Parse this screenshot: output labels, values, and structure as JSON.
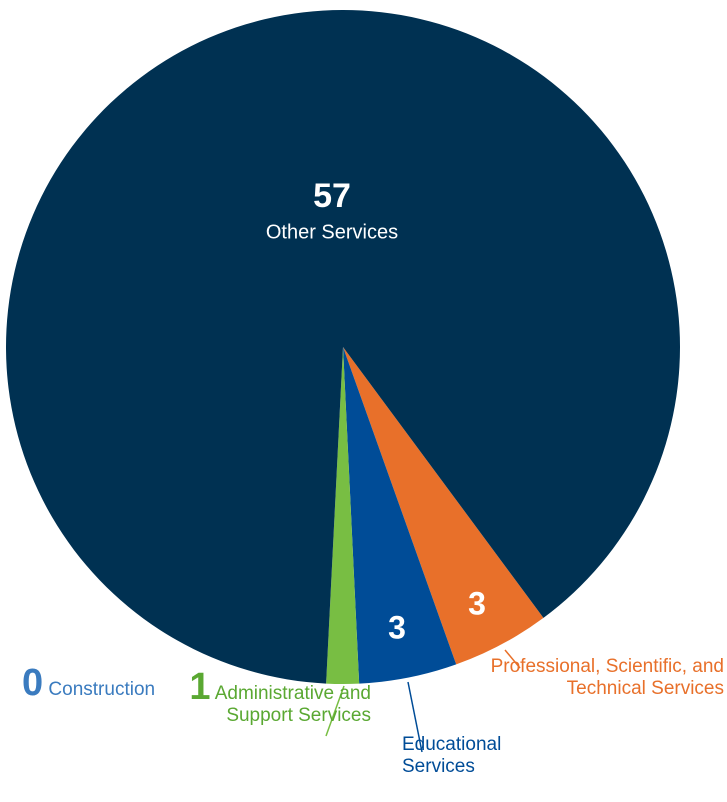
{
  "chart_data": {
    "type": "pie",
    "categories": [
      "Professional, Scientific, and Technical Services",
      "Educational Services",
      "Administrative and Support Services",
      "Construction",
      "Other Services"
    ],
    "values": [
      3,
      3,
      1,
      0,
      57
    ],
    "colors": [
      "#e8702a",
      "#004c97",
      "#78be43",
      "#3a7bbf",
      "#003152"
    ],
    "label_colors": [
      "#e8702a",
      "#004c97",
      "#5aa832",
      "#3a7bbf",
      "#ffffff"
    ]
  }
}
